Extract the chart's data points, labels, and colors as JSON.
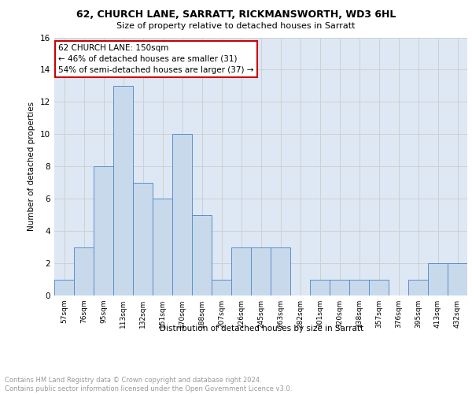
{
  "title1": "62, CHURCH LANE, SARRATT, RICKMANSWORTH, WD3 6HL",
  "title2": "Size of property relative to detached houses in Sarratt",
  "xlabel": "Distribution of detached houses by size in Sarratt",
  "ylabel": "Number of detached properties",
  "categories": [
    "57sqm",
    "76sqm",
    "95sqm",
    "113sqm",
    "132sqm",
    "151sqm",
    "170sqm",
    "188sqm",
    "207sqm",
    "226sqm",
    "245sqm",
    "263sqm",
    "282sqm",
    "301sqm",
    "320sqm",
    "338sqm",
    "357sqm",
    "376sqm",
    "395sqm",
    "413sqm",
    "432sqm"
  ],
  "values": [
    1,
    3,
    8,
    13,
    7,
    6,
    10,
    5,
    1,
    3,
    3,
    3,
    0,
    1,
    1,
    1,
    1,
    0,
    1,
    2,
    2
  ],
  "bar_color": "#c9d9ec",
  "bar_edge_color": "#5b8fc9",
  "annotation_line1": "62 CHURCH LANE: 150sqm",
  "annotation_line2": "← 46% of detached houses are smaller (31)",
  "annotation_line3": "54% of semi-detached houses are larger (37) →",
  "annotation_box_color": "#ffffff",
  "annotation_box_edge_color": "#cc0000",
  "footer_text": "Contains HM Land Registry data © Crown copyright and database right 2024.\nContains public sector information licensed under the Open Government Licence v3.0.",
  "ylim": [
    0,
    16
  ],
  "yticks": [
    0,
    2,
    4,
    6,
    8,
    10,
    12,
    14,
    16
  ],
  "grid_color": "#d0d0d0",
  "background_color": "#dde8f4"
}
